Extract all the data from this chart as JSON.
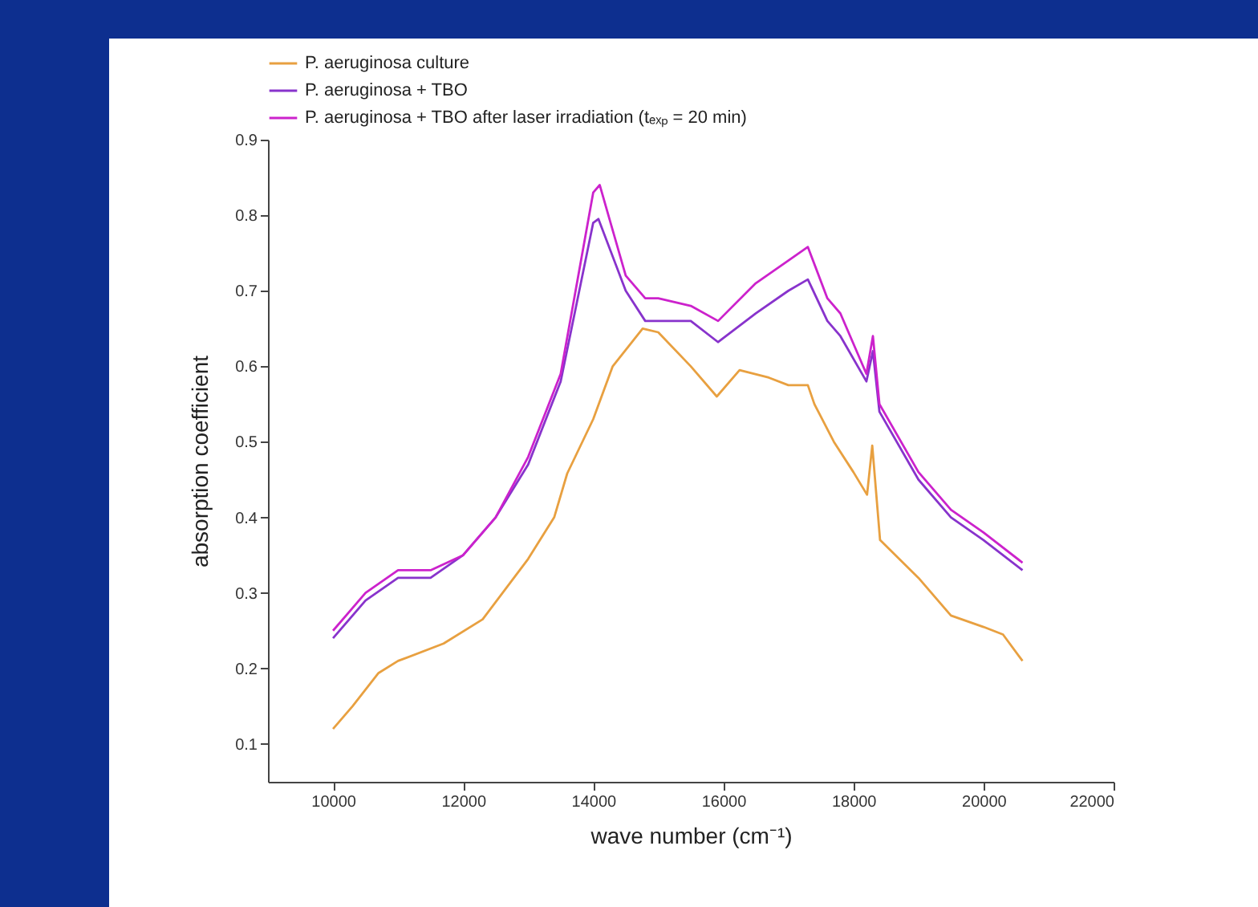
{
  "chart_data": {
    "type": "line",
    "xlabel": "wave number (cm⁻¹)",
    "ylabel": "absorption coefficient",
    "xlim": [
      9000,
      22000
    ],
    "ylim": [
      0.05,
      0.9
    ],
    "xticks": [
      10000,
      12000,
      14000,
      16000,
      18000,
      20000,
      22000
    ],
    "yticks": [
      0.1,
      0.2,
      0.3,
      0.4,
      0.5,
      0.6,
      0.7,
      0.8,
      0.9
    ],
    "grid": false,
    "legend": "top",
    "marker": "none",
    "line_style": "solid",
    "series": [
      {
        "name": "P. aeruginosa culture",
        "color": "#e8a040",
        "x": [
          10000,
          10300,
          10700,
          11000,
          11700,
          12300,
          13000,
          13400,
          13600,
          14000,
          14300,
          14760,
          15000,
          15500,
          15900,
          16250,
          16700,
          17000,
          17300,
          17400,
          17700,
          18000,
          18210,
          18290,
          18410,
          19000,
          19500,
          20000,
          20300,
          20600
        ],
        "values": [
          0.12,
          0.15,
          0.194,
          0.21,
          0.233,
          0.265,
          0.345,
          0.4,
          0.458,
          0.53,
          0.6,
          0.65,
          0.645,
          0.6,
          0.56,
          0.595,
          0.585,
          0.575,
          0.575,
          0.55,
          0.5,
          0.46,
          0.43,
          0.495,
          0.37,
          0.32,
          0.27,
          0.255,
          0.245,
          0.21
        ]
      },
      {
        "name": "P. aeruginosa + TBO",
        "color": "#8833cc",
        "x": [
          10000,
          10500,
          11000,
          11500,
          12000,
          12500,
          13000,
          13500,
          14000,
          14080,
          14500,
          14800,
          15000,
          15500,
          15920,
          16500,
          17000,
          17300,
          17600,
          17800,
          18200,
          18300,
          18400,
          19000,
          19500,
          20000,
          20600
        ],
        "values": [
          0.24,
          0.29,
          0.32,
          0.32,
          0.35,
          0.4,
          0.47,
          0.58,
          0.79,
          0.795,
          0.7,
          0.66,
          0.66,
          0.66,
          0.632,
          0.67,
          0.7,
          0.715,
          0.66,
          0.64,
          0.58,
          0.62,
          0.54,
          0.45,
          0.4,
          0.37,
          0.33
        ]
      },
      {
        "name": "P. aeruginosa + TBO after laser irradiation (tₑₓₚ = 20 min)",
        "color": "#cc22cc",
        "x": [
          10000,
          10500,
          11000,
          11500,
          12000,
          12500,
          13000,
          13500,
          14000,
          14100,
          14500,
          14800,
          15000,
          15500,
          15920,
          16500,
          17000,
          17300,
          17600,
          17800,
          18200,
          18300,
          18400,
          19000,
          19500,
          20000,
          20600
        ],
        "values": [
          0.25,
          0.3,
          0.33,
          0.33,
          0.35,
          0.4,
          0.48,
          0.59,
          0.83,
          0.84,
          0.72,
          0.69,
          0.69,
          0.68,
          0.66,
          0.71,
          0.74,
          0.758,
          0.69,
          0.67,
          0.59,
          0.64,
          0.55,
          0.46,
          0.41,
          0.38,
          0.34
        ]
      }
    ]
  }
}
